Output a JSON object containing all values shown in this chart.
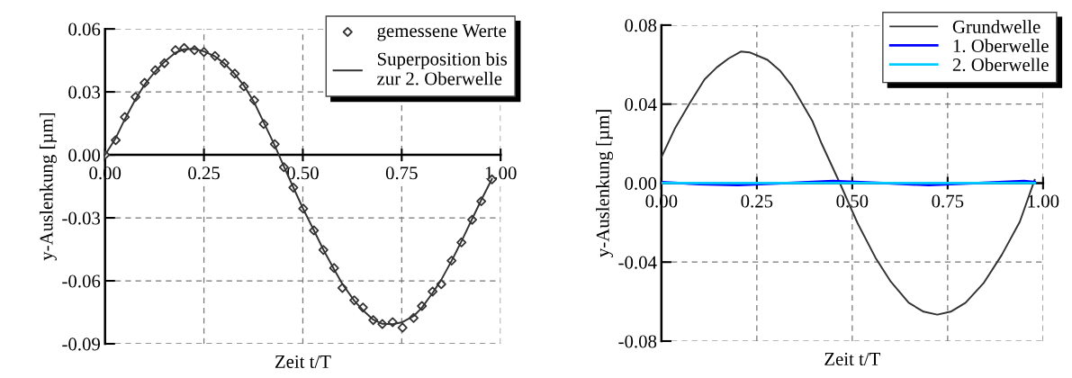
{
  "chart_data": [
    {
      "type": "line",
      "xlabel": "Zeit t/T",
      "ylabel": "y-Auslenkung [µm]",
      "xlim": [
        0,
        1
      ],
      "ylim": [
        -0.09,
        0.06
      ],
      "xticks": [
        {
          "value": 0,
          "label": "0.00"
        },
        {
          "value": 0.25,
          "label": "0.25"
        },
        {
          "value": 0.5,
          "label": "0.50"
        },
        {
          "value": 0.75,
          "label": "0.75"
        },
        {
          "value": 1,
          "label": "1.00"
        }
      ],
      "yticks": [
        {
          "value": -0.09,
          "label": "-0.09"
        },
        {
          "value": -0.06,
          "label": "-0.06"
        },
        {
          "value": -0.03,
          "label": "-0.03"
        },
        {
          "value": 0,
          "label": "0.00"
        },
        {
          "value": 0.03,
          "label": "0.03"
        },
        {
          "value": 0.06,
          "label": "0.06"
        }
      ],
      "grid": true,
      "legend": "top right",
      "series": [
        {
          "name": "gemessene Werte",
          "type": "scatter",
          "marker": "diamond",
          "color": "#333333",
          "x": [
            0,
            0.027,
            0.05,
            0.077,
            0.1,
            0.127,
            0.15,
            0.178,
            0.2,
            0.226,
            0.25,
            0.278,
            0.302,
            0.328,
            0.351,
            0.377,
            0.401,
            0.429,
            0.452,
            0.476,
            0.501,
            0.528,
            0.552,
            0.579,
            0.6,
            0.63,
            0.652,
            0.678,
            0.701,
            0.727,
            0.752,
            0.78,
            0.801,
            0.828,
            0.85,
            0.876,
            0.901,
            0.928,
            0.951,
            0.978
          ],
          "values": [
            0,
            0.007,
            0.018,
            0.0276,
            0.0343,
            0.0403,
            0.0437,
            0.0499,
            0.0509,
            0.0499,
            0.049,
            0.0471,
            0.0437,
            0.0387,
            0.0326,
            0.026,
            0.0147,
            0.0051,
            -0.0059,
            -0.0156,
            -0.0256,
            -0.036,
            -0.0453,
            -0.0539,
            -0.0634,
            -0.0693,
            -0.0727,
            -0.0787,
            -0.0806,
            -0.0797,
            -0.0823,
            -0.0777,
            -0.072,
            -0.0651,
            -0.0616,
            -0.0504,
            -0.0417,
            -0.0309,
            -0.0221,
            -0.0117
          ]
        },
        {
          "name": "Superposition bis zur 2. Oberwelle",
          "type": "line",
          "color": "#333333",
          "x": [
            0,
            0.027,
            0.05,
            0.077,
            0.1,
            0.127,
            0.15,
            0.178,
            0.2,
            0.226,
            0.25,
            0.278,
            0.302,
            0.328,
            0.351,
            0.377,
            0.401,
            0.429,
            0.452,
            0.476,
            0.501,
            0.528,
            0.552,
            0.579,
            0.6,
            0.63,
            0.652,
            0.678,
            0.701,
            0.727,
            0.752,
            0.78,
            0.801,
            0.828,
            0.85,
            0.876,
            0.901,
            0.928,
            0.951,
            0.978
          ],
          "values": [
            0,
            0.008,
            0.017,
            0.0265,
            0.0335,
            0.0398,
            0.0443,
            0.0487,
            0.0503,
            0.0505,
            0.0493,
            0.0469,
            0.0435,
            0.0385,
            0.033,
            0.025,
            0.0155,
            0.0045,
            -0.0055,
            -0.0155,
            -0.0258,
            -0.036,
            -0.0452,
            -0.0545,
            -0.0615,
            -0.0695,
            -0.074,
            -0.0785,
            -0.0805,
            -0.0807,
            -0.0797,
            -0.0768,
            -0.0728,
            -0.0658,
            -0.0595,
            -0.0505,
            -0.0412,
            -0.0305,
            -0.0215,
            -0.0115
          ]
        }
      ]
    },
    {
      "type": "line",
      "xlabel": "Zeit t/T",
      "ylabel": "y-Auslenkung [µm]",
      "xlim": [
        0,
        1
      ],
      "ylim": [
        -0.08,
        0.08
      ],
      "xticks": [
        {
          "value": 0,
          "label": "0.00"
        },
        {
          "value": 0.25,
          "label": "0.25"
        },
        {
          "value": 0.5,
          "label": "0.50"
        },
        {
          "value": 0.75,
          "label": "0.75"
        },
        {
          "value": 1,
          "label": "1.00"
        }
      ],
      "yticks": [
        {
          "value": -0.08,
          "label": "-0.08"
        },
        {
          "value": -0.04,
          "label": "-0.04"
        },
        {
          "value": 0,
          "label": "0.00"
        },
        {
          "value": 0.04,
          "label": "0.04"
        },
        {
          "value": 0.08,
          "label": "0.08"
        }
      ],
      "grid": true,
      "legend": "top right",
      "series": [
        {
          "name": "Grundwelle",
          "color": "#333333",
          "x": [
            0,
            0.035,
            0.074,
            0.113,
            0.145,
            0.176,
            0.208,
            0.231,
            0.278,
            0.31,
            0.341,
            0.396,
            0.42,
            0.467,
            0.514,
            0.561,
            0.601,
            0.648,
            0.687,
            0.723,
            0.758,
            0.797,
            0.844,
            0.892,
            0.939,
            0.978
          ],
          "values": [
            0.0131,
            0.0275,
            0.0404,
            0.0525,
            0.0586,
            0.0631,
            0.0666,
            0.0662,
            0.0624,
            0.0571,
            0.0495,
            0.0313,
            0.0199,
            0.0002,
            -0.0203,
            -0.0378,
            -0.0499,
            -0.0606,
            -0.0651,
            -0.0666,
            -0.0651,
            -0.0606,
            -0.0507,
            -0.0363,
            -0.0196,
            0.0017
          ]
        },
        {
          "name": "1. Oberwelle",
          "color": "#0000ff",
          "x": [
            0,
            0.1,
            0.2,
            0.33,
            0.45,
            0.58,
            0.7,
            0.83,
            0.95,
            0.978
          ],
          "values": [
            0.0005,
            -0.0005,
            -0.001,
            0,
            0.001,
            0,
            -0.001,
            0,
            0.001,
            0.0005
          ]
        },
        {
          "name": "2. Oberwelle",
          "color": "#00ccff",
          "x": [
            0,
            0.978
          ],
          "values": [
            0,
            0
          ]
        }
      ]
    }
  ]
}
